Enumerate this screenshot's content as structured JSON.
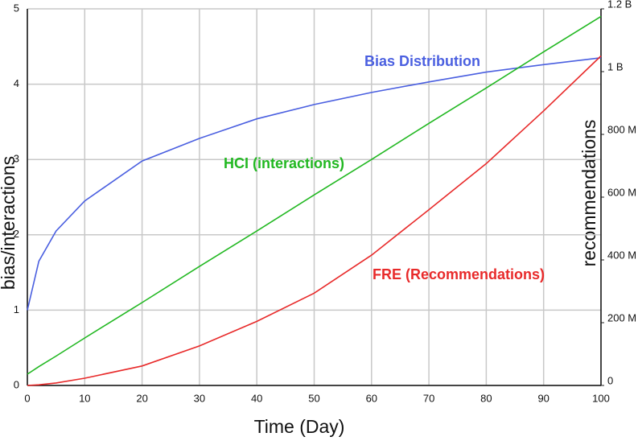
{
  "chart_data": {
    "type": "line",
    "x_label": "Time (Day)",
    "y_label": "bias/interactions",
    "y2_label": "recommendations",
    "x": [
      0,
      2,
      5,
      10,
      20,
      30,
      40,
      50,
      60,
      70,
      80,
      90,
      100
    ],
    "xlim": [
      0,
      100
    ],
    "xticks": [
      0,
      10,
      20,
      30,
      40,
      50,
      60,
      70,
      80,
      90,
      100
    ],
    "ylim": [
      0,
      5
    ],
    "yticks": [
      0,
      1,
      2,
      3,
      4,
      5
    ],
    "y2lim": [
      0,
      1200000000
    ],
    "y2ticks": [
      {
        "value": 0,
        "label": "0"
      },
      {
        "value": 200000000,
        "label": "200 M"
      },
      {
        "value": 400000000,
        "label": "400 M"
      },
      {
        "value": 600000000,
        "label": "600 M"
      },
      {
        "value": 800000000,
        "label": "800 M"
      },
      {
        "value": 1000000000,
        "label": "1 B"
      },
      {
        "value": 1200000000,
        "label": "1.2 B"
      }
    ],
    "grid": true,
    "series": [
      {
        "name": "Bias Distribution",
        "color": "#4a5fe0",
        "values": [
          1,
          1.65,
          2.05,
          2.45,
          2.98,
          3.28,
          3.54,
          3.73,
          3.89,
          4.03,
          4.16,
          4.26,
          4.35
        ]
      },
      {
        "name": "HCI (interactions)",
        "color": "#22b822",
        "values": [
          0.15,
          0.25,
          0.39,
          0.63,
          1.1,
          1.58,
          2.05,
          2.53,
          3.0,
          3.48,
          3.95,
          4.43,
          4.9
        ]
      },
      {
        "name": "FRE (Recommendations)",
        "color": "#e82a2a",
        "axis": "y2",
        "values": [
          0,
          2000000,
          8000000,
          23000000,
          62000000,
          126000000,
          204000000,
          294000000,
          415000000,
          560000000,
          707000000,
          875000000,
          1050000000
        ]
      }
    ]
  }
}
